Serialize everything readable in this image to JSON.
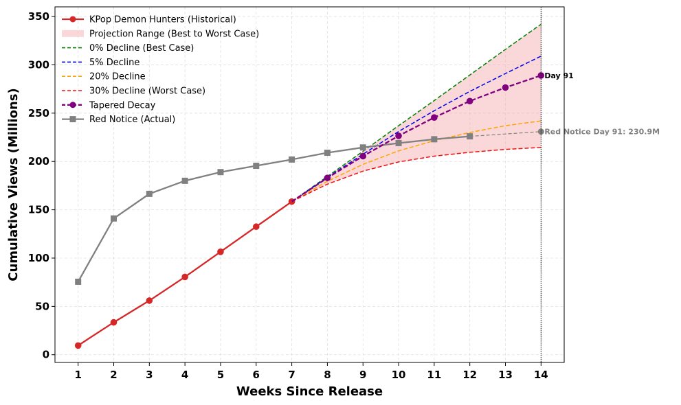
{
  "chart_data": {
    "type": "line",
    "title": "",
    "xlabel": "Weeks Since Release",
    "ylabel": "Cumulative Views (Millions)",
    "xlim": [
      0.35,
      14.65
    ],
    "ylim": [
      -8,
      360
    ],
    "x_ticks": [
      1,
      2,
      3,
      4,
      5,
      6,
      7,
      8,
      9,
      10,
      11,
      12,
      13,
      14
    ],
    "y_ticks": [
      0,
      50,
      100,
      150,
      200,
      250,
      300,
      350
    ],
    "grid": true,
    "legend_position": "top-left",
    "colors": {
      "historical": "#d62728",
      "band": "#f4a6a8",
      "best": "#008000",
      "decline5": "#0000ee",
      "decline20": "#ffa500",
      "worst": "#ee1111",
      "tapered": "#800080",
      "red_notice": "#808080"
    },
    "series": [
      {
        "name": "KPop Demon Hunters (Historical)",
        "style": "solid-circle",
        "x": [
          1,
          2,
          3,
          4,
          5,
          6,
          7
        ],
        "values": [
          9.5,
          33.5,
          56,
          80.5,
          106.5,
          132.5,
          158.5
        ]
      },
      {
        "name": "0% Decline (Best Case)",
        "style": "dashed",
        "x": [
          7,
          8,
          9,
          10,
          11,
          12,
          13,
          14
        ],
        "values": [
          158.5,
          184.5,
          210.5,
          237,
          263,
          289.5,
          316,
          342
        ]
      },
      {
        "name": "5% Decline",
        "style": "dashed",
        "x": [
          7,
          8,
          9,
          10,
          11,
          12,
          13,
          14
        ],
        "values": [
          158.5,
          183.5,
          207.5,
          231,
          252.5,
          272.5,
          291,
          309
        ]
      },
      {
        "name": "20% Decline",
        "style": "dashed",
        "x": [
          7,
          8,
          9,
          10,
          11,
          12,
          13,
          14
        ],
        "values": [
          158.5,
          179.5,
          197,
          211,
          221.5,
          230,
          237,
          242
        ]
      },
      {
        "name": "30% Decline (Worst Case)",
        "style": "dashed",
        "x": [
          7,
          8,
          9,
          10,
          11,
          12,
          13,
          14
        ],
        "values": [
          158.5,
          176.5,
          190,
          199.5,
          205.5,
          209.5,
          212.5,
          214.5
        ]
      },
      {
        "name": "Tapered Decay",
        "style": "dashed-circle",
        "x": [
          7,
          8,
          9,
          10,
          11,
          12,
          13,
          14
        ],
        "values": [
          158.5,
          183,
          205.5,
          226.5,
          245.5,
          262.5,
          276.5,
          289
        ]
      },
      {
        "name": "Red Notice (Actual)",
        "style": "solid-square",
        "x": [
          1,
          2,
          3,
          4,
          5,
          6,
          7,
          8,
          9,
          10,
          11,
          12
        ],
        "values": [
          75.5,
          141,
          166.5,
          180,
          189,
          195.5,
          202,
          209,
          214.5,
          219,
          223,
          226
        ]
      }
    ],
    "red_notice_extension": {
      "x": [
        12,
        14
      ],
      "values": [
        226,
        230.9
      ]
    },
    "projection_range": {
      "name": "Projection Range (Best to Worst Case)"
    },
    "vertical_line_x": 14,
    "annotations": [
      {
        "text": "Day 91",
        "x": 14,
        "y": 289
      },
      {
        "text": "Red Notice Day 91: 230.9M",
        "x": 14,
        "y": 230.9
      }
    ]
  }
}
